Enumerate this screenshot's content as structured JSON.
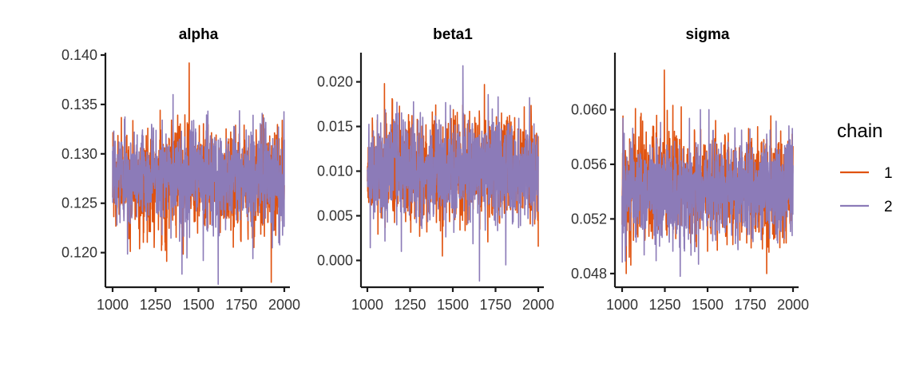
{
  "chart_data": {
    "type": "line",
    "legend": {
      "title": "chain",
      "position": "right"
    },
    "series_styles": [
      {
        "chain": "1",
        "color": "#E0520E"
      },
      {
        "chain": "2",
        "color": "#8C7BB8"
      }
    ],
    "x": {
      "range": [
        1000,
        2000
      ],
      "ticks": [
        1000,
        1250,
        1500,
        1750,
        2000
      ],
      "tick_labels": [
        "1000",
        "1250",
        "1500",
        "1750",
        "2000"
      ]
    },
    "panels": [
      {
        "title": "alpha",
        "ylim": [
          0.1165,
          0.14
        ],
        "yticks": [
          0.12,
          0.125,
          0.13,
          0.135,
          0.14
        ],
        "ytick_labels": [
          "0.120",
          "0.125",
          "0.130",
          "0.135",
          "0.140"
        ],
        "series": [
          {
            "chain": "1",
            "mean": 0.1273,
            "sd": 0.0026,
            "min": 0.117,
            "max": 0.1392
          },
          {
            "chain": "2",
            "mean": 0.1276,
            "sd": 0.0024,
            "min": 0.1168,
            "max": 0.136
          }
        ]
      },
      {
        "title": "beta1",
        "ylim": [
          -0.003,
          0.023
        ],
        "yticks": [
          0.0,
          0.005,
          0.01,
          0.015,
          0.02
        ],
        "ytick_labels": [
          "0.000",
          "0.005",
          "0.010",
          "0.015",
          "0.020"
        ],
        "series": [
          {
            "chain": "1",
            "mean": 0.0101,
            "sd": 0.003,
            "min": 0.0005,
            "max": 0.0198
          },
          {
            "chain": "2",
            "mean": 0.01,
            "sd": 0.0028,
            "min": -0.0023,
            "max": 0.0218
          }
        ]
      },
      {
        "title": "sigma",
        "ylim": [
          0.047,
          0.064
        ],
        "yticks": [
          0.048,
          0.052,
          0.056,
          0.06
        ],
        "ytick_labels": [
          "0.048",
          "0.052",
          "0.056",
          "0.060"
        ],
        "series": [
          {
            "chain": "1",
            "mean": 0.0543,
            "sd": 0.002,
            "min": 0.048,
            "max": 0.0629
          },
          {
            "chain": "2",
            "mean": 0.0541,
            "sd": 0.0018,
            "min": 0.0478,
            "max": 0.06
          }
        ]
      }
    ]
  }
}
